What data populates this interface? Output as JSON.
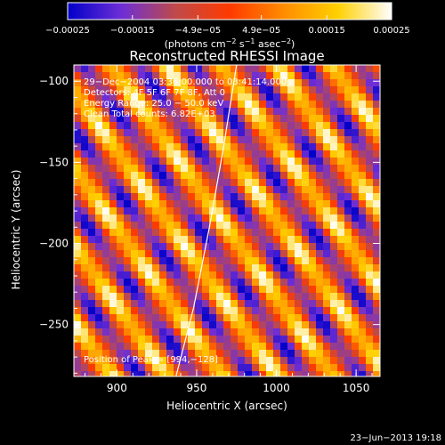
{
  "chart_data": {
    "type": "heatmap",
    "title": "Reconstructed RHESSI Image",
    "xlabel": "Heliocentric X (arcsec)",
    "ylabel": "Heliocentric Y (arcsec)",
    "xlim": [
      873,
      1065
    ],
    "ylim": [
      -282,
      -90
    ],
    "x_ticks": [
      900,
      950,
      1000,
      1050
    ],
    "x_tick_labels": [
      "900",
      "950",
      "1000",
      "1050"
    ],
    "y_ticks": [
      -100,
      -150,
      -200,
      -250
    ],
    "y_tick_labels": [
      "−100",
      "−150",
      "−200",
      "−250"
    ],
    "grid": false,
    "colorbar": {
      "range": [
        -0.00025,
        0.00025
      ],
      "tick_values": [
        -0.00025,
        -0.00015,
        -4.9e-05,
        4.9e-05,
        0.00015,
        0.00025
      ],
      "tick_labels": [
        "−0.00025",
        "−0.00015",
        "−4.9e−05",
        "4.9e−05",
        "0.00015",
        "0.00025"
      ],
      "units": [
        "(photons cm",
        "−2",
        " s",
        "−1",
        " asec",
        "−2",
        ")"
      ],
      "colormap": [
        "#0000c8",
        "#6e2ed6",
        "#bf4a4a",
        "#ff3a00",
        "#ff8c00",
        "#ffd000",
        "#ffffff"
      ]
    },
    "annotations": [
      "29−Dec−2004 03:36:00.000 to 03:41:14.000",
      "Detectors: 4F 5F 6F 7F 8F, Att 0",
      "Energy Range: 25.0 − 50.0 keV",
      "Clean     Total counts: 6.82E+03"
    ],
    "peak_label": "Position of Peak = [994,−128]",
    "peak_position": [
      994,
      -128
    ],
    "limb_curve": {
      "x": [
        937,
        948,
        958,
        967,
        975
      ],
      "y": [
        -282,
        -240,
        -190,
        -140,
        -90
      ]
    },
    "pattern": {
      "description_free_parameters": true,
      "stripe_angle_deg": -36,
      "stripe_period_arcsec": 28,
      "max_value": 0.00025,
      "min_value": -0.00025
    },
    "timestamp": "23−Jun−2013 19:18"
  }
}
